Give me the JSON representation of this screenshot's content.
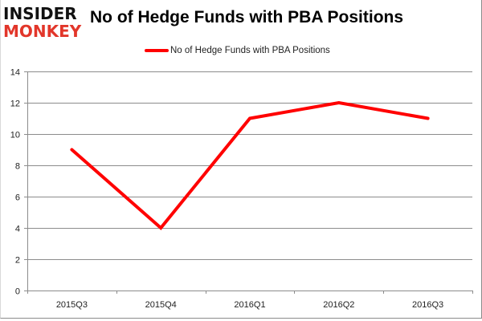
{
  "branding": {
    "logo_line1": "INSIDER",
    "logo_line2": "MONKEY"
  },
  "chart_data": {
    "type": "line",
    "title": "No of Hedge Funds with PBA Positions",
    "categories": [
      "2015Q3",
      "2015Q4",
      "2016Q1",
      "2016Q2",
      "2016Q3"
    ],
    "series": [
      {
        "name": "No of Hedge Funds with PBA Positions",
        "values": [
          9,
          4,
          11,
          12,
          11
        ],
        "color": "#ff0000"
      }
    ],
    "xlabel": "",
    "ylabel": "",
    "ylim": [
      0,
      14
    ],
    "yticks": [
      0,
      2,
      4,
      6,
      8,
      10,
      12,
      14
    ],
    "grid": true,
    "legend_position": "top"
  }
}
